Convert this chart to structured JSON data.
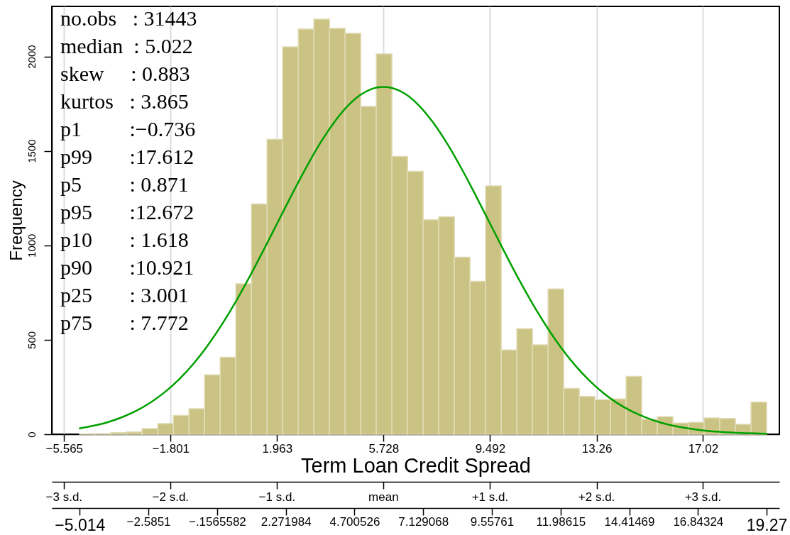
{
  "chart_data": {
    "type": "histogram",
    "xlabel": "Term Loan Credit Spread",
    "ylabel": "Frequency",
    "bins": [
      -5.014,
      -4.4621,
      -3.9102,
      -3.3583,
      -2.8064,
      -2.2545,
      -1.7025,
      -1.1506,
      -0.5987,
      -0.0468,
      0.5051,
      1.057,
      1.6089,
      2.1608,
      2.7127,
      3.2646,
      3.8165,
      4.3685,
      4.9204,
      5.4723,
      6.0242,
      6.5761,
      7.128,
      7.6799,
      8.2318,
      8.7837,
      9.3356,
      9.8875,
      10.4395,
      10.9914,
      11.5433,
      12.0952,
      12.6471,
      13.199,
      13.7509,
      14.3028,
      14.8547,
      15.4066,
      15.9585,
      16.5105,
      17.0624,
      17.6143,
      18.1662,
      18.7181,
      19.27
    ],
    "series": [
      {
        "color": "#cbc383",
        "values": [
          2,
          3,
          8,
          12,
          30,
          56,
          100,
          135,
          315,
          408,
          796,
          1219,
          1562,
          2051,
          2145,
          2197,
          2149,
          2122,
          1735,
          2013,
          1471,
          1392,
          1135,
          1151,
          937,
          809,
          1315,
          446,
          559,
          473,
          769,
          242,
          200,
          183,
          187,
          306,
          79,
          93,
          59,
          63,
          86,
          84,
          53,
          170
        ]
      },
      {
        "type": "line",
        "color": "#00a000",
        "x": [
          -5.014,
          -4.5,
          -4,
          -3.5,
          -3,
          -2.5,
          -2,
          -1.5,
          -1,
          -0.5,
          0,
          0.5,
          1,
          1.5,
          2,
          2.5,
          3,
          3.5,
          4,
          4.5,
          5,
          5.5,
          5.728,
          6,
          6.5,
          7,
          7.5,
          8,
          8.5,
          9,
          9.5,
          10,
          10.5,
          11,
          11.5,
          12,
          12.5,
          13,
          13.5,
          14,
          14.5,
          15,
          15.5,
          16,
          16.5,
          17,
          17.5,
          18,
          18.5,
          19,
          19.27
        ],
        "values": [
          31,
          46,
          65,
          91,
          125,
          169,
          224,
          291,
          372,
          468,
          578,
          701,
          836,
          979,
          1126,
          1273,
          1414,
          1544,
          1655,
          1744,
          1805,
          1836,
          1839,
          1834,
          1801,
          1737,
          1646,
          1533,
          1402,
          1260,
          1113,
          966,
          823,
          690,
          568,
          459,
          365,
          285,
          218,
          164,
          122,
          89,
          63,
          44,
          31,
          21,
          14,
          9,
          6,
          4,
          3
        ]
      }
    ],
    "xlim": [
      -6.0,
      19.72
    ],
    "ylim": [
      0,
      2265
    ],
    "xticks": [
      -5.565,
      -1.801,
      1.963,
      5.728,
      9.492,
      13.26,
      17.02
    ],
    "yticks": [
      0,
      500,
      1000,
      1500,
      2000
    ],
    "x2lim": [
      -6.0,
      19.72
    ],
    "x2ticks": [
      -5.014,
      -2.5851,
      {
        "value": -0.1565582,
        "label": "−.1565582"
      },
      2.271984,
      4.700526,
      7.129068,
      9.55761,
      11.98615,
      14.41469,
      16.84324,
      19.27
    ],
    "grid": "x",
    "annotations": [
      "no.obs   : 31443",
      "median  : 5.022",
      "skew     : 0.883",
      "kurtos   : 3.865",
      "p1         :−0.736",
      "p99       :17.612",
      "p5         : 0.871",
      "p95       :12.672",
      "p10       : 1.618",
      "p90       :10.921",
      "p25       : 3.001",
      "p75       : 7.772",
      "−3 s.d.",
      "−2 s.d.",
      "−1 s.d.",
      "mean",
      "+1 s.d.",
      "+2 s.d.",
      "+3 s.d."
    ]
  }
}
